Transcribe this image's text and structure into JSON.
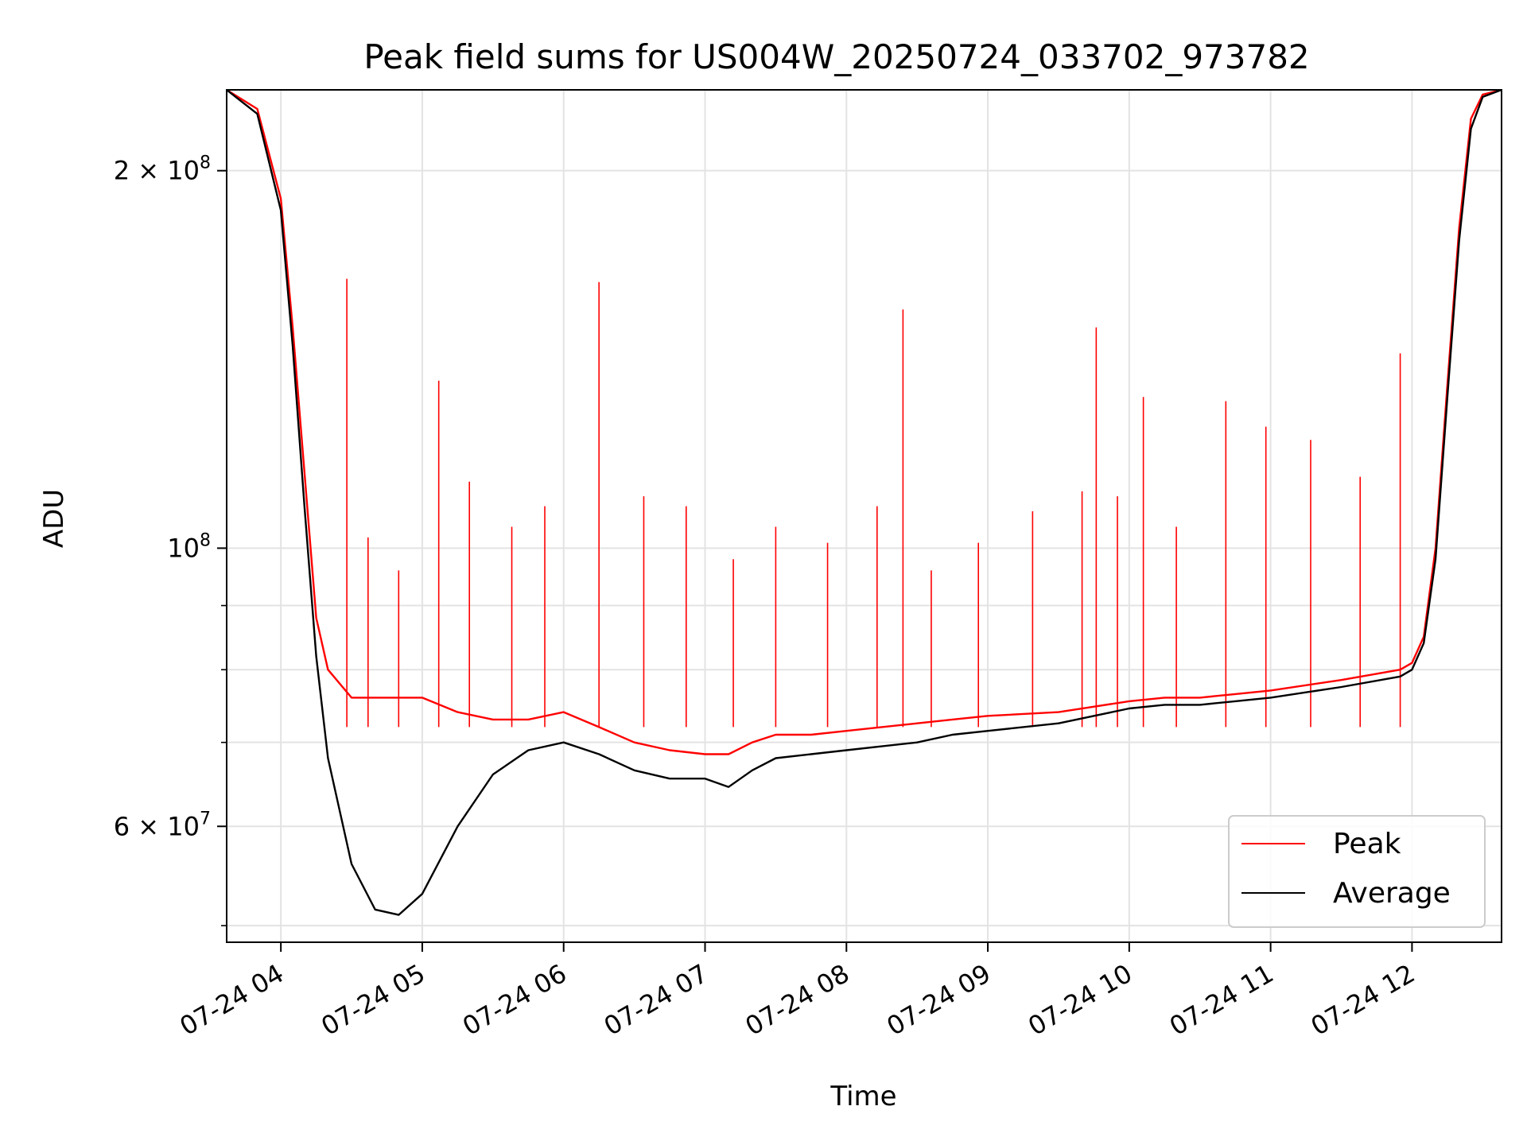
{
  "chart_data": {
    "type": "line",
    "title": "Peak field sums for US004W_20250724_033702_973782",
    "xlabel": "Time",
    "ylabel": "ADU",
    "yscale": "log",
    "grid": true,
    "legend_position": "lower-right",
    "xlim": [
      "2025-07-24 03:37",
      "2025-07-24 12:38"
    ],
    "ylim": [
      48500000,
      232000000
    ],
    "x_tick_labels": [
      "07-24 04",
      "07-24 05",
      "07-24 06",
      "07-24 07",
      "07-24 08",
      "07-24 09",
      "07-24 10",
      "07-24 11",
      "07-24 12"
    ],
    "x_ticks": [
      "2025-07-24 04:00",
      "2025-07-24 05:00",
      "2025-07-24 06:00",
      "2025-07-24 07:00",
      "2025-07-24 08:00",
      "2025-07-24 09:00",
      "2025-07-24 10:00",
      "2025-07-24 11:00",
      "2025-07-24 12:00"
    ],
    "y_major_ticks": [
      {
        "value": 60000000,
        "mantissa": "6",
        "exponent": "7"
      },
      {
        "value": 100000000,
        "mantissa": "",
        "exponent": "8"
      },
      {
        "value": 200000000,
        "mantissa": "2",
        "exponent": "8"
      }
    ],
    "y_minor_ticks": [
      50000000,
      70000000,
      80000000,
      90000000
    ],
    "series": [
      {
        "name": "Peak",
        "color": "#ff0000",
        "x": [
          "2025-07-24 03:37",
          "2025-07-24 03:50",
          "2025-07-24 04:00",
          "2025-07-24 04:05",
          "2025-07-24 04:10",
          "2025-07-24 04:15",
          "2025-07-24 04:20",
          "2025-07-24 04:30",
          "2025-07-24 04:40",
          "2025-07-24 04:50",
          "2025-07-24 05:00",
          "2025-07-24 05:15",
          "2025-07-24 05:30",
          "2025-07-24 05:45",
          "2025-07-24 06:00",
          "2025-07-24 06:15",
          "2025-07-24 06:30",
          "2025-07-24 06:45",
          "2025-07-24 07:00",
          "2025-07-24 07:10",
          "2025-07-24 07:20",
          "2025-07-24 07:30",
          "2025-07-24 07:45",
          "2025-07-24 08:00",
          "2025-07-24 08:15",
          "2025-07-24 08:30",
          "2025-07-24 08:45",
          "2025-07-24 09:00",
          "2025-07-24 09:30",
          "2025-07-24 10:00",
          "2025-07-24 10:15",
          "2025-07-24 10:30",
          "2025-07-24 10:45",
          "2025-07-24 11:00",
          "2025-07-24 11:30",
          "2025-07-24 11:55",
          "2025-07-24 12:00",
          "2025-07-24 12:05",
          "2025-07-24 12:10",
          "2025-07-24 12:15",
          "2025-07-24 12:20",
          "2025-07-24 12:25",
          "2025-07-24 12:30",
          "2025-07-24 12:38"
        ],
        "y": [
          232000000,
          224000000,
          190000000,
          150000000,
          115000000,
          88000000,
          80000000,
          76000000,
          76000000,
          76000000,
          76000000,
          74000000,
          73000000,
          73000000,
          74000000,
          72000000,
          70000000,
          69000000,
          68500000,
          68500000,
          70000000,
          71000000,
          71000000,
          71500000,
          72000000,
          72500000,
          73000000,
          73500000,
          74000000,
          75500000,
          76000000,
          76000000,
          76500000,
          77000000,
          78500000,
          80000000,
          81000000,
          85000000,
          100000000,
          135000000,
          180000000,
          220000000,
          230000000,
          232000000
        ]
      },
      {
        "name": "Average",
        "color": "#000000",
        "x": [
          "2025-07-24 03:37",
          "2025-07-24 03:50",
          "2025-07-24 04:00",
          "2025-07-24 04:05",
          "2025-07-24 04:10",
          "2025-07-24 04:15",
          "2025-07-24 04:20",
          "2025-07-24 04:30",
          "2025-07-24 04:40",
          "2025-07-24 04:50",
          "2025-07-24 05:00",
          "2025-07-24 05:15",
          "2025-07-24 05:30",
          "2025-07-24 05:45",
          "2025-07-24 06:00",
          "2025-07-24 06:15",
          "2025-07-24 06:30",
          "2025-07-24 06:45",
          "2025-07-24 07:00",
          "2025-07-24 07:10",
          "2025-07-24 07:20",
          "2025-07-24 07:30",
          "2025-07-24 07:45",
          "2025-07-24 08:00",
          "2025-07-24 08:15",
          "2025-07-24 08:30",
          "2025-07-24 08:45",
          "2025-07-24 09:00",
          "2025-07-24 09:30",
          "2025-07-24 10:00",
          "2025-07-24 10:15",
          "2025-07-24 10:30",
          "2025-07-24 10:45",
          "2025-07-24 11:00",
          "2025-07-24 11:30",
          "2025-07-24 11:55",
          "2025-07-24 12:00",
          "2025-07-24 12:05",
          "2025-07-24 12:10",
          "2025-07-24 12:15",
          "2025-07-24 12:20",
          "2025-07-24 12:25",
          "2025-07-24 12:30",
          "2025-07-24 12:38"
        ],
        "y": [
          232000000,
          222000000,
          186000000,
          145000000,
          108000000,
          82000000,
          68000000,
          56000000,
          51500000,
          51000000,
          53000000,
          60000000,
          66000000,
          69000000,
          70000000,
          68500000,
          66500000,
          65500000,
          65500000,
          64500000,
          66500000,
          68000000,
          68500000,
          69000000,
          69500000,
          70000000,
          71000000,
          71500000,
          72500000,
          74500000,
          75000000,
          75000000,
          75500000,
          76000000,
          77500000,
          79000000,
          80000000,
          84000000,
          98000000,
          132000000,
          176000000,
          216000000,
          229000000,
          232000000
        ]
      }
    ],
    "peak_spikes": {
      "x": [
        "2025-07-24 04:28",
        "2025-07-24 04:37",
        "2025-07-24 04:50",
        "2025-07-24 05:07",
        "2025-07-24 05:20",
        "2025-07-24 05:38",
        "2025-07-24 05:52",
        "2025-07-24 06:15",
        "2025-07-24 06:34",
        "2025-07-24 06:52",
        "2025-07-24 07:12",
        "2025-07-24 07:30",
        "2025-07-24 07:52",
        "2025-07-24 08:13",
        "2025-07-24 08:24",
        "2025-07-24 08:36",
        "2025-07-24 08:56",
        "2025-07-24 09:19",
        "2025-07-24 09:40",
        "2025-07-24 09:46",
        "2025-07-24 09:55",
        "2025-07-24 10:06",
        "2025-07-24 10:20",
        "2025-07-24 10:41",
        "2025-07-24 10:58",
        "2025-07-24 11:17",
        "2025-07-24 11:38",
        "2025-07-24 11:55"
      ],
      "y": [
        164000000,
        102000000,
        96000000,
        136000000,
        113000000,
        104000000,
        108000000,
        163000000,
        110000000,
        108000000,
        98000000,
        104000000,
        101000000,
        108000000,
        155000000,
        96000000,
        101000000,
        107000000,
        111000000,
        150000000,
        110000000,
        132000000,
        104000000,
        131000000,
        125000000,
        122000000,
        114000000,
        143000000
      ]
    }
  }
}
